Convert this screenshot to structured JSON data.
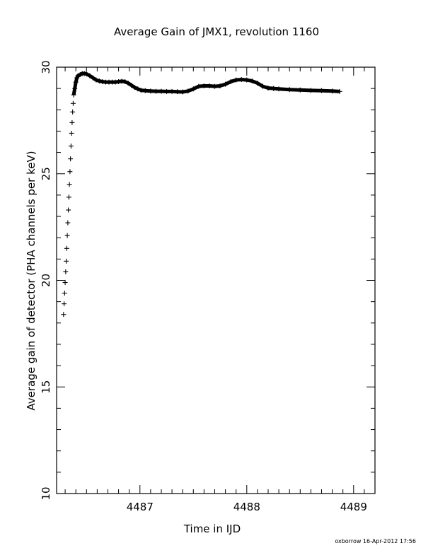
{
  "chart_data": {
    "type": "scatter",
    "title": "Average Gain of JMX1, revolution 1160",
    "xlabel": "Time in IJD",
    "ylabel": "Average gain of detector (PHA channels per keV)",
    "xlim": [
      4486.22,
      4489.2
    ],
    "ylim": [
      10,
      30
    ],
    "xticks": [
      4487,
      4488,
      4489
    ],
    "yticks": [
      10,
      15,
      20,
      25,
      30
    ],
    "marker": "+",
    "grid": false,
    "series": [
      {
        "values_x": [
          4486.285,
          4486.29,
          4486.295,
          4486.3,
          4486.305,
          4486.31,
          4486.315,
          4486.32,
          4486.325,
          4486.33,
          4486.335,
          4486.34,
          4486.345,
          4486.35,
          4486.355,
          4486.36,
          4486.365,
          4486.37,
          4486.375,
          4486.38,
          4486.39,
          4486.4,
          4486.41,
          4486.42,
          4486.44,
          4486.46,
          4486.48,
          4486.5,
          4486.53,
          4486.56,
          4486.59,
          4486.62,
          4486.65,
          4486.68,
          4486.71,
          4486.74,
          4486.77,
          4486.8,
          4486.83,
          4486.86,
          4486.89,
          4486.92,
          4486.95,
          4486.98,
          4487.01,
          4487.05,
          4487.1,
          4487.15,
          4487.2,
          4487.25,
          4487.3,
          4487.35,
          4487.4,
          4487.45,
          4487.5,
          4487.55,
          4487.6,
          4487.65,
          4487.7,
          4487.75,
          4487.8,
          4487.85,
          4487.9,
          4487.95,
          4488.0,
          4488.05,
          4488.1,
          4488.15,
          4488.2,
          4488.25,
          4488.3,
          4488.4,
          4488.5,
          4488.6,
          4488.7,
          4488.8,
          4488.87
        ],
        "values_y": [
          18.4,
          18.9,
          19.4,
          19.9,
          20.4,
          20.9,
          21.5,
          22.1,
          22.7,
          23.3,
          23.9,
          24.5,
          25.1,
          25.7,
          26.3,
          26.9,
          27.4,
          27.9,
          28.3,
          28.7,
          29.0,
          29.3,
          29.5,
          29.6,
          29.65,
          29.7,
          29.7,
          29.68,
          29.6,
          29.5,
          29.4,
          29.35,
          29.32,
          29.3,
          29.3,
          29.3,
          29.3,
          29.32,
          29.34,
          29.32,
          29.25,
          29.15,
          29.05,
          28.98,
          28.92,
          28.9,
          28.88,
          28.87,
          28.87,
          28.86,
          28.86,
          28.85,
          28.84,
          28.88,
          28.98,
          29.1,
          29.12,
          29.12,
          29.1,
          29.12,
          29.2,
          29.32,
          29.4,
          29.42,
          29.4,
          29.35,
          29.25,
          29.1,
          29.02,
          29.0,
          28.98,
          28.95,
          28.93,
          28.91,
          28.9,
          28.88,
          28.86
        ]
      }
    ]
  },
  "footer": "oxborrow 16-Apr-2012 17:56"
}
